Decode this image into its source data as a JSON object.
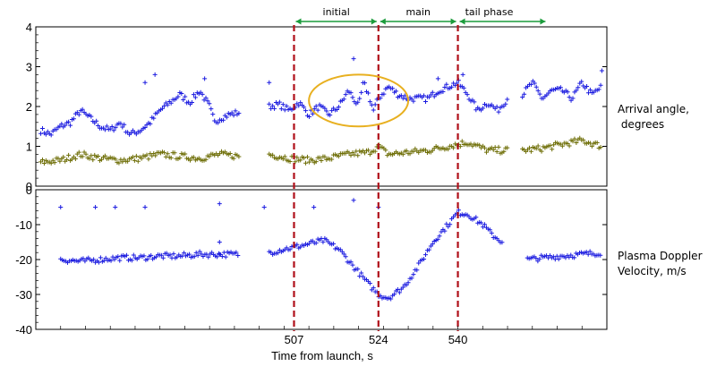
{
  "chart_data": [
    {
      "type": "scatter",
      "panel": "top",
      "ylabel_lines": [
        "Arrival angle,",
        " degrees"
      ],
      "ylim": [
        0,
        4
      ],
      "yticks": [
        "0",
        "1",
        "2",
        "3",
        "4"
      ],
      "xlim": [
        455,
        570
      ],
      "series": [
        {
          "color": "#1c1ce0",
          "segments": [
            {
              "x": [
                456,
                458,
                460,
                462,
                464,
                466,
                468,
                470,
                472,
                474,
                476,
                478,
                480,
                482,
                484,
                486,
                488,
                490,
                491,
                492,
                494,
                496
              ],
              "y": [
                1.4,
                1.3,
                1.5,
                1.6,
                1.9,
                1.7,
                1.5,
                1.4,
                1.6,
                1.3,
                1.4,
                1.6,
                1.9,
                2.1,
                2.3,
                2.1,
                2.4,
                2.0,
                1.6,
                1.7,
                1.8,
                1.85
              ]
            },
            {
              "x": [
                502,
                504,
                506,
                508,
                510,
                512,
                514,
                516,
                518,
                520,
                521,
                522,
                523,
                524,
                526,
                528,
                530,
                532,
                534,
                536,
                538,
                540,
                542,
                544,
                546,
                548,
                550
              ],
              "y": [
                2.0,
                2.05,
                1.9,
                2.1,
                1.8,
                2.0,
                1.8,
                2.0,
                2.4,
                2.0,
                2.6,
                2.3,
                1.9,
                2.2,
                2.5,
                2.3,
                2.2,
                2.2,
                2.2,
                2.4,
                2.5,
                2.6,
                2.3,
                1.9,
                2.1,
                1.9,
                2.2
              ]
            },
            {
              "x": [
                553,
                555,
                557,
                559,
                561,
                563,
                565,
                567,
                569
              ],
              "y": [
                2.3,
                2.6,
                2.2,
                2.4,
                2.4,
                2.2,
                2.6,
                2.3,
                2.5
              ]
            }
          ]
        },
        {
          "color": "#6e6e06",
          "segments": [
            {
              "x": [
                456,
                460,
                464,
                468,
                472,
                476,
                480,
                484,
                488,
                492,
                496
              ],
              "y": [
                0.6,
                0.65,
                0.8,
                0.7,
                0.65,
                0.7,
                0.8,
                0.75,
                0.7,
                0.8,
                0.75
              ]
            },
            {
              "x": [
                502,
                506,
                510,
                514,
                518,
                522,
                524,
                526,
                530,
                534,
                538,
                542,
                546,
                550
              ],
              "y": [
                0.8,
                0.7,
                0.65,
                0.7,
                0.8,
                0.85,
                1.0,
                0.8,
                0.85,
                0.9,
                1.0,
                1.1,
                0.9,
                0.9
              ]
            },
            {
              "x": [
                553,
                557,
                561,
                565,
                569
              ],
              "y": [
                0.9,
                0.95,
                1.05,
                1.15,
                1.0
              ]
            }
          ]
        }
      ],
      "outliers": [
        {
          "x": 477,
          "y": 2.6
        },
        {
          "x": 479,
          "y": 2.8
        },
        {
          "x": 489,
          "y": 2.7
        },
        {
          "x": 502,
          "y": 2.6
        },
        {
          "x": 519,
          "y": 3.2
        },
        {
          "x": 536,
          "y": 2.7
        },
        {
          "x": 541,
          "y": 2.8
        },
        {
          "x": 569,
          "y": 2.9
        }
      ]
    },
    {
      "type": "scatter",
      "panel": "bottom",
      "ylabel_lines": [
        "Plasma Doppler",
        "Velocity, m/s"
      ],
      "ylim": [
        -40,
        0
      ],
      "yticks": [
        "0",
        "-10",
        "-20",
        "-30",
        "-40"
      ],
      "xlim": [
        455,
        570
      ],
      "xlabel": "Time from launch,  s",
      "xticks": [
        "507",
        "524",
        "540"
      ],
      "series": [
        {
          "color": "#1c1ce0",
          "segments": [
            {
              "x": [
                460,
                464,
                468,
                472,
                476,
                480,
                484,
                488,
                492,
                496
              ],
              "y": [
                -20,
                -20.5,
                -20,
                -19.5,
                -19.5,
                -19,
                -19,
                -18.5,
                -18.5,
                -18.5
              ]
            },
            {
              "x": [
                502,
                505,
                507,
                510,
                513,
                516,
                519,
                522,
                524,
                526,
                529,
                532,
                535,
                538,
                540,
                542,
                545,
                547,
                549
              ],
              "y": [
                -18,
                -17,
                -16.5,
                -15.5,
                -14.5,
                -17,
                -22,
                -27,
                -30,
                -31,
                -28,
                -22,
                -15,
                -10,
                -6.5,
                -7,
                -10,
                -13,
                -15
              ]
            },
            {
              "x": [
                554,
                557,
                561,
                565,
                569
              ],
              "y": [
                -20,
                -19.5,
                -19,
                -18.5,
                -18
              ]
            }
          ]
        }
      ],
      "outliers": [
        {
          "x": 460,
          "y": -5
        },
        {
          "x": 467,
          "y": -5
        },
        {
          "x": 471,
          "y": -5
        },
        {
          "x": 477,
          "y": -5
        },
        {
          "x": 492,
          "y": -4
        },
        {
          "x": 501,
          "y": -5
        },
        {
          "x": 511,
          "y": -5
        },
        {
          "x": 519,
          "y": -3
        },
        {
          "x": 524,
          "y": -5
        },
        {
          "x": 492,
          "y": -15
        },
        {
          "x": 492,
          "y": -18.5
        }
      ]
    }
  ],
  "phase_markers": {
    "lines_x": [
      507,
      524,
      540
    ],
    "line_color": "#b0101a",
    "arrow_color": "#1c9c3c",
    "phases": [
      {
        "label": "initial",
        "x0": 507,
        "x1": 524
      },
      {
        "label": "main",
        "x0": 524,
        "x1": 540
      },
      {
        "label": "tail phase",
        "x0": 540,
        "x1": 558
      }
    ]
  },
  "highlight": {
    "color": "#e8b020",
    "cx": 520,
    "cy": 2.15,
    "rx": 10,
    "ry": 0.65
  }
}
